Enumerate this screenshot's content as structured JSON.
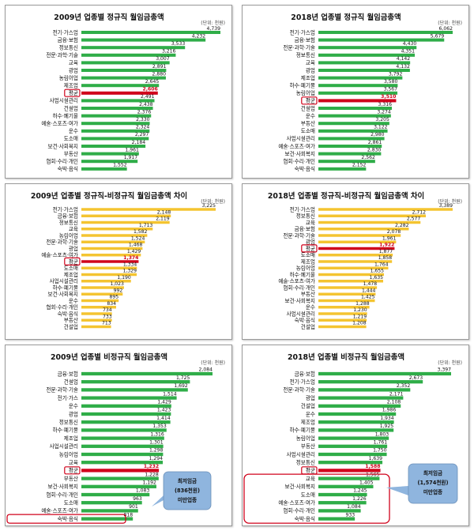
{
  "colors": {
    "green": "#2fad48",
    "yellow": "#f4c430",
    "highlight": "#d0021b",
    "callout_fill": "#8fb5de",
    "callout_stroke": "#6a8fb8"
  },
  "chart_data": [
    {
      "type": "bar",
      "orientation": "horizontal",
      "title": "2009년 업종별 정규직 월임금총액",
      "unit": "(단위: 천원)",
      "color": "green",
      "highlight": "평균",
      "categories": [
        "전기·가스업",
        "금융·보험",
        "정보통신",
        "전문·과학·기술",
        "교육",
        "광업",
        "농림어업",
        "제조업",
        "평균",
        "사업시설관리",
        "건설업",
        "하수·폐기물",
        "예술·스포츠·여가",
        "운수",
        "도소매",
        "보건·사회복지",
        "부동산",
        "협회·수리·개인",
        "숙박·음식"
      ],
      "values": [
        4739,
        4232,
        3533,
        3216,
        3007,
        2891,
        2880,
        2645,
        2606,
        2491,
        2438,
        2376,
        2330,
        2324,
        2297,
        2184,
        1961,
        1917,
        1552
      ],
      "labels": [
        "4,739",
        "4,232",
        "3,533",
        "3,216",
        "3,007",
        "2,891",
        "2,880",
        "2,645",
        "2,606",
        "2,491",
        "2,438",
        "2,376",
        "2,330",
        "2,324",
        "2,297",
        "2,184",
        "1,961",
        "1,917",
        "1,552"
      ]
    },
    {
      "type": "bar",
      "orientation": "horizontal",
      "title": "2018년 업종별 정규직 월임금총액",
      "unit": "(단위: 천원)",
      "color": "green",
      "highlight": "평균",
      "categories": [
        "전기·가스업",
        "금융·보험",
        "전문·과학·기술",
        "정보통신",
        "교육",
        "광업",
        "제조업",
        "하수·폐기물",
        "농림어업",
        "평균",
        "건설업",
        "운수",
        "부동산",
        "도소매",
        "사업시설관리",
        "예술·스포츠·여가",
        "보건·사회복지",
        "협회·수리·개인",
        "숙박·음식"
      ],
      "values": [
        6062,
        5679,
        4430,
        4351,
        4142,
        4132,
        3792,
        3580,
        3567,
        3510,
        3316,
        3274,
        3205,
        3122,
        2980,
        2861,
        2830,
        2562,
        2152
      ],
      "labels": [
        "6,062",
        "5,679",
        "4,430",
        "4,351",
        "4,142",
        "4,132",
        "3,792",
        "3,580",
        "3,567",
        "3,510",
        "3,316",
        "3,274",
        "3,205",
        "3,122",
        "2,980",
        "2,861",
        "2,830",
        "2,562",
        "2,152"
      ]
    },
    {
      "type": "bar",
      "orientation": "horizontal",
      "title": "2009년 업종별 정규직-비정규직 월임금총액 차이",
      "unit": "(단위: 천원)",
      "color": "yellow",
      "highlight": "평균",
      "categories": [
        "전기·가스업",
        "금융·보험",
        "정보통신",
        "교육",
        "농림어업",
        "전문·과학·기술",
        "광업",
        "예술·스포츠·여가",
        "평균",
        "도소매",
        "제조업",
        "사업시설관리",
        "하수·폐기물",
        "보건·사회복지",
        "운수",
        "협회·수리·개인",
        "숙박·음식",
        "부동산",
        "건설업"
      ],
      "values": [
        3225,
        2148,
        2119,
        1713,
        1582,
        1524,
        1468,
        1429,
        1374,
        1334,
        1329,
        1190,
        1023,
        992,
        895,
        834,
        734,
        733,
        713
      ],
      "labels": [
        "3,225",
        "2,148",
        "2,119",
        "1,713",
        "1,582",
        "1,524",
        "1,468",
        "1,429",
        "1,374",
        "1,334",
        "1,329",
        "1,190",
        "1,023",
        "992",
        "895",
        "834",
        "734",
        "733",
        "713"
      ]
    },
    {
      "type": "bar",
      "orientation": "horizontal",
      "title": "2018년 업종별 정규직-비정규직 월임금총액 차이",
      "unit": "(단위: 천원)",
      "color": "yellow",
      "highlight": "평균",
      "categories": [
        "전기·가스업",
        "정보통신",
        "교육",
        "금융·보험",
        "전문·과학·기술",
        "광업",
        "평균",
        "도소매",
        "제조업",
        "농림어업",
        "하수·폐기물",
        "예술·스포츠·여가",
        "협회·수리·개인",
        "부동산",
        "보건·사회복지",
        "운수",
        "사업시설관리",
        "숙박·음식",
        "건설업"
      ],
      "values": [
        3389,
        2712,
        2577,
        2282,
        2078,
        1961,
        1922,
        1877,
        1858,
        1764,
        1655,
        1635,
        1478,
        1444,
        1425,
        1288,
        1230,
        1219,
        1208
      ],
      "labels": [
        "3,389",
        "2,712",
        "2,577",
        "2,282",
        "2,078",
        "1,961",
        "1,922",
        "1,877",
        "1,858",
        "1,764",
        "1,655",
        "1,635",
        "1,478",
        "1,444",
        "1,425",
        "1,288",
        "1,230",
        "1,219",
        "1,208"
      ]
    },
    {
      "type": "bar",
      "orientation": "horizontal",
      "title": "2009년 업종별 비정규직 월임금총액",
      "unit": "(단위: 천원)",
      "color": "green",
      "highlight": "평균",
      "categories": [
        "금융·보험",
        "건설업",
        "전문·과학·기술",
        "전기·가스",
        "운수",
        "광업",
        "정보통신",
        "하수·폐기물",
        "제조업",
        "사업시설관리",
        "농림어업",
        "교육",
        "평균",
        "부동산",
        "보건·사회복지",
        "협회·수리·개인",
        "도소매",
        "예술·스포츠·여가",
        "숙박·음식"
      ],
      "values": [
        2084,
        1725,
        1692,
        1514,
        1429,
        1423,
        1414,
        1353,
        1316,
        1301,
        1298,
        1294,
        1232,
        1228,
        1192,
        1083,
        963,
        901,
        818
      ],
      "labels": [
        "2,084",
        "1,725",
        "1,692",
        "1,514",
        "1,429",
        "1,423",
        "1,414",
        "1,353",
        "1,316",
        "1,301",
        "1,298",
        "1,294",
        "1,232",
        "1,228",
        "1,192",
        "1,083",
        "963",
        "901",
        "818"
      ],
      "callout": [
        "최저임금",
        "(836천원)",
        "미만업종"
      ]
    },
    {
      "type": "bar",
      "orientation": "horizontal",
      "title": "2018년 업종별 비정규직 월임금총액",
      "unit": "(단위: 천원)",
      "color": "green",
      "highlight": "평균",
      "categories": [
        "금융·보험",
        "전기·가스업",
        "전문·과학·기술",
        "광업",
        "건설업",
        "운수",
        "제조업",
        "하수·폐기물",
        "농림어업",
        "부동산",
        "사업시설관리",
        "정보통신",
        "평균",
        "교육",
        "보건·사회복지",
        "도소매",
        "예술·스포츠·여가",
        "협회·수리·개인",
        "숙박·음식"
      ],
      "values": [
        3397,
        2673,
        2352,
        2171,
        2108,
        1986,
        1934,
        1925,
        1803,
        1761,
        1750,
        1639,
        1588,
        1565,
        1405,
        1245,
        1226,
        1084,
        933
      ],
      "labels": [
        "3,397",
        "2,673",
        "2,352",
        "2,171",
        "2,108",
        "1,986",
        "1,934",
        "1,925",
        "1,803",
        "1,761",
        "1,750",
        "1,639",
        "1,588",
        "1,565",
        "1,405",
        "1,245",
        "1,226",
        "1,084",
        "933"
      ],
      "callout": [
        "최저임금",
        "(1,574천원)",
        "미만업종"
      ]
    }
  ]
}
